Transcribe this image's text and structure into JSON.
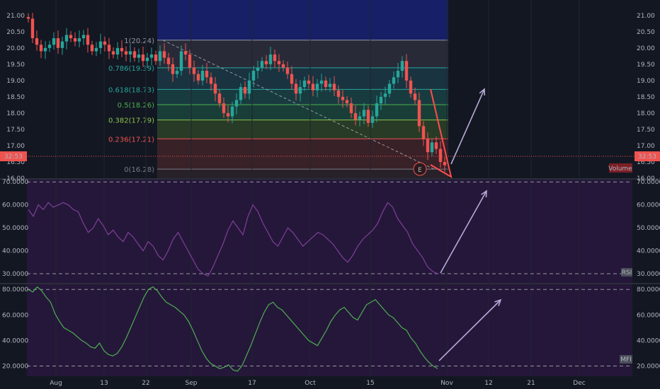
{
  "colors": {
    "background": "#131722",
    "grid": "#1f2430",
    "up": "#26a69a",
    "down": "#ef5350",
    "rsi_line": "#7e3f98",
    "mfi_line": "#4caf50",
    "indicator_bg": "#25173a",
    "arrow": "#b7a9d6",
    "wedge": "#ff4d4d",
    "fib_band_top": "#1a237e"
  },
  "chart_data": [
    {
      "type": "candlestick",
      "panel": "price",
      "y_ticks": [
        16.0,
        16.5,
        17.0,
        17.5,
        18.0,
        18.5,
        19.0,
        19.5,
        20.0,
        20.5,
        21.0
      ],
      "y_tick_labels": [
        "16.00",
        "16.50",
        "17.00",
        "17.50",
        "18.00",
        "18.50",
        "19.00",
        "19.50",
        "20.00",
        "20.50",
        "21.00"
      ],
      "ylim": [
        16.0,
        21.3
      ],
      "current_price_label": "32:53",
      "volume_label": "Volume",
      "x_labels": [
        "Aug",
        "13",
        "22",
        "Sep",
        "17",
        "Oct",
        "15",
        "Nov",
        "12",
        "21",
        "Dec"
      ],
      "fibonacci": [
        {
          "level": "1",
          "price": 20.24,
          "label": "1(20.24)"
        },
        {
          "level": "0.786",
          "price": 19.39,
          "label": "0.786(19.39)"
        },
        {
          "level": "0.618",
          "price": 18.73,
          "label": "0.618(18.73)"
        },
        {
          "level": "0.5",
          "price": 18.26,
          "label": "0.5(18.26)"
        },
        {
          "level": "0.382",
          "price": 17.79,
          "label": "0.382(17.79)"
        },
        {
          "level": "0.236",
          "price": 17.21,
          "label": "0.236(17.21)"
        },
        {
          "level": "0",
          "price": 16.28,
          "label": "0(16.28)"
        }
      ],
      "event_marker": "E",
      "closes": [
        20.9,
        20.3,
        20.1,
        19.9,
        20.0,
        20.1,
        20.3,
        20.0,
        20.2,
        20.4,
        20.3,
        20.2,
        20.3,
        20.4,
        20.1,
        19.9,
        20.0,
        20.2,
        20.1,
        19.9,
        19.8,
        20.0,
        19.9,
        19.8,
        19.9,
        19.7,
        19.8,
        19.6,
        19.7,
        19.8,
        19.6,
        19.9,
        19.7,
        19.5,
        19.2,
        19.3,
        19.9,
        19.8,
        19.4,
        19.2,
        19.0,
        19.3,
        19.1,
        18.9,
        18.6,
        18.3,
        18.0,
        17.9,
        18.2,
        18.4,
        18.8,
        18.6,
        19.0,
        19.3,
        19.4,
        19.6,
        19.5,
        19.8,
        19.6,
        19.5,
        19.4,
        19.2,
        18.9,
        18.6,
        18.8,
        19.0,
        18.9,
        18.7,
        18.9,
        19.0,
        18.8,
        18.9,
        18.7,
        18.5,
        18.4,
        18.3,
        18.0,
        17.8,
        17.9,
        18.1,
        17.7,
        17.9,
        18.3,
        18.5,
        18.6,
        18.9,
        19.1,
        19.3,
        19.6,
        19.0,
        18.6,
        18.4,
        17.6,
        17.2,
        16.8,
        17.1,
        16.9,
        16.5,
        16.4
      ]
    },
    {
      "type": "line",
      "panel": "RSI",
      "label": "RSI",
      "y_ticks": [
        30,
        40,
        50,
        60,
        70
      ],
      "y_tick_labels": [
        "30.0000",
        "40.0000",
        "50.0000",
        "60.0000",
        "70.0000"
      ],
      "ylim": [
        26,
        71
      ],
      "bands": [
        30,
        70
      ],
      "values": [
        58,
        55,
        60,
        58,
        61,
        59,
        60,
        61,
        60,
        58,
        57,
        52,
        48,
        50,
        54,
        51,
        47,
        49,
        46,
        44,
        48,
        46,
        43,
        40,
        44,
        42,
        38,
        36,
        40,
        45,
        48,
        44,
        40,
        36,
        32,
        30,
        29,
        33,
        38,
        43,
        49,
        53,
        50,
        47,
        55,
        60,
        57,
        52,
        48,
        44,
        42,
        46,
        50,
        48,
        45,
        42,
        44,
        46,
        48,
        47,
        45,
        43,
        40,
        37,
        35,
        38,
        42,
        45,
        47,
        49,
        52,
        57,
        61,
        59,
        54,
        51,
        48,
        43,
        40,
        37,
        33,
        31,
        30
      ]
    },
    {
      "type": "line",
      "panel": "MFI",
      "label": "MFI",
      "y_ticks": [
        20,
        40,
        60,
        80
      ],
      "y_tick_labels": [
        "20.0000",
        "40.0000",
        "60.0000",
        "80.0000"
      ],
      "ylim": [
        12,
        84
      ],
      "bands": [
        20,
        80
      ],
      "values": [
        80,
        78,
        82,
        79,
        74,
        70,
        61,
        55,
        50,
        48,
        46,
        43,
        40,
        38,
        35,
        34,
        38,
        32,
        29,
        28,
        30,
        35,
        42,
        50,
        58,
        66,
        74,
        80,
        82,
        79,
        74,
        70,
        68,
        66,
        63,
        60,
        55,
        48,
        40,
        32,
        26,
        22,
        20,
        18,
        19,
        21,
        17,
        16,
        20,
        28,
        36,
        45,
        54,
        62,
        68,
        70,
        66,
        64,
        60,
        56,
        52,
        48,
        44,
        40,
        38,
        36,
        42,
        48,
        55,
        60,
        64,
        66,
        62,
        58,
        56,
        62,
        68,
        70,
        72,
        68,
        64,
        60,
        58,
        54,
        50,
        48,
        42,
        38,
        32,
        27,
        23,
        20,
        18
      ]
    }
  ]
}
